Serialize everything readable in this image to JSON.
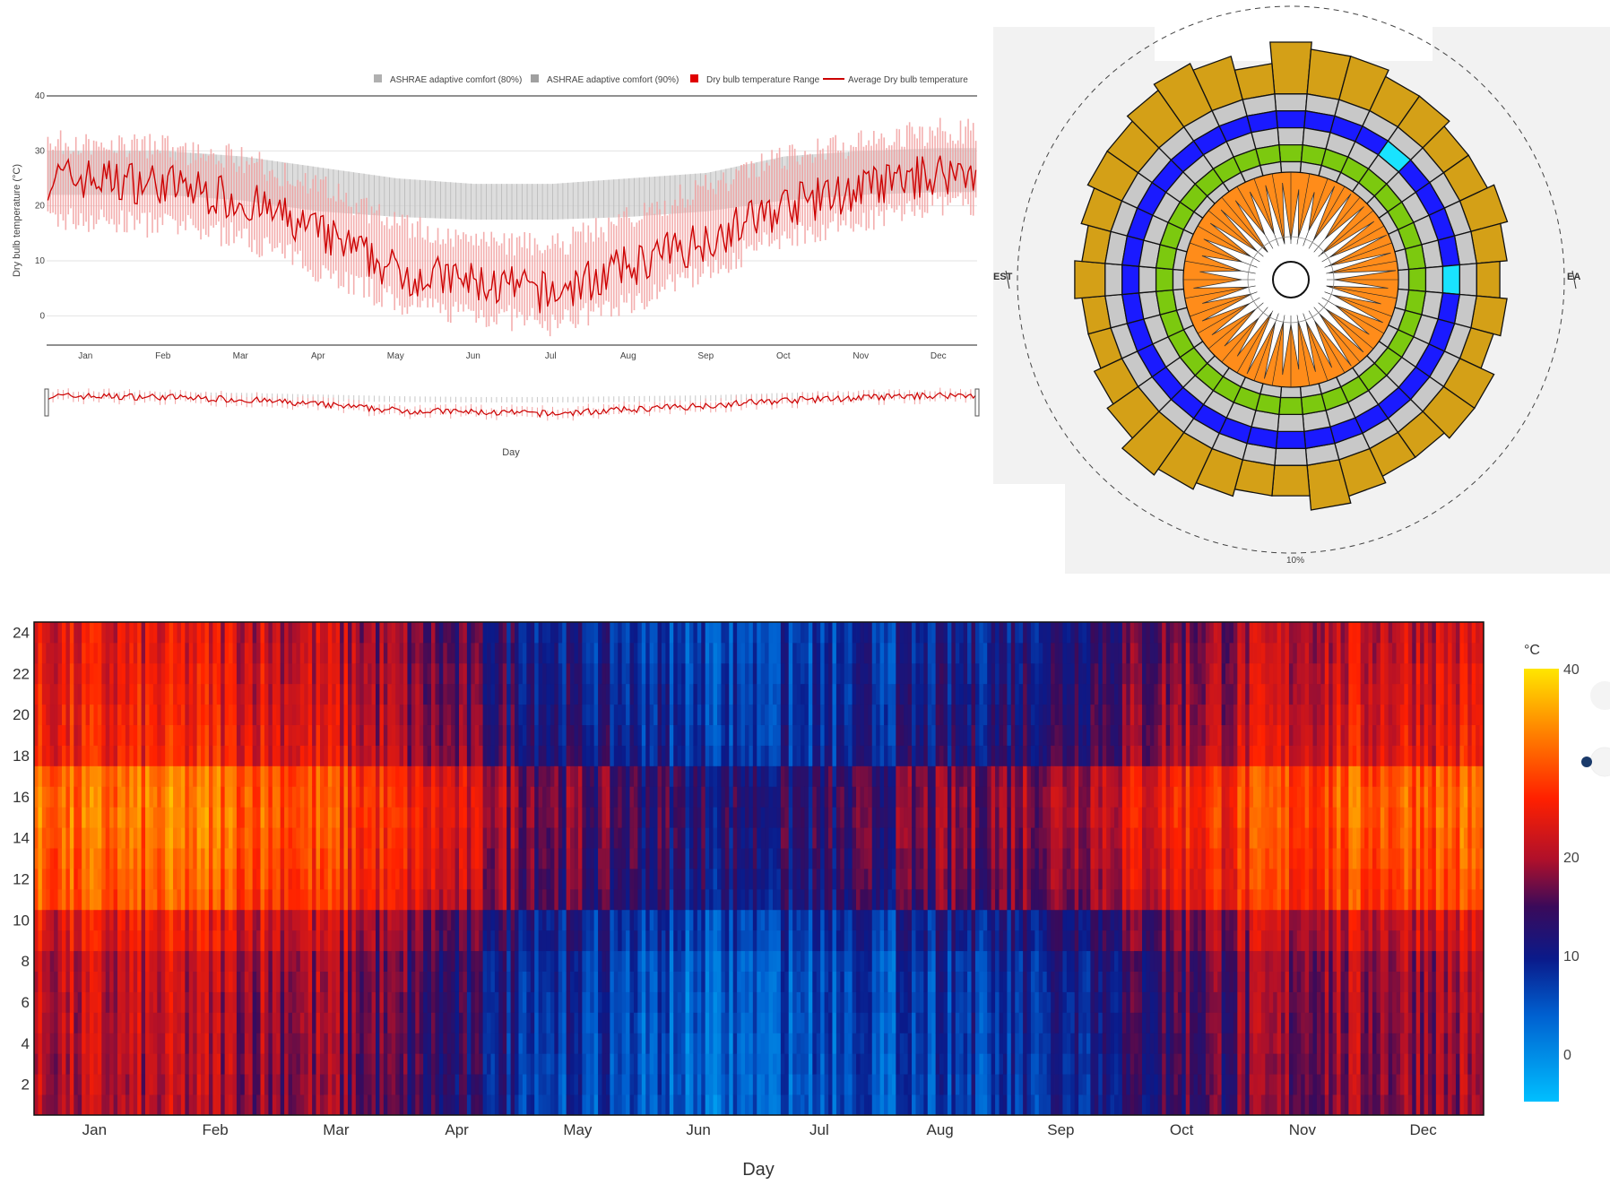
{
  "line_chart": {
    "legend": [
      {
        "label": "ASHRAE adaptive comfort (80%)",
        "color": "#b0b0b0",
        "kind": "box"
      },
      {
        "label": "ASHRAE adaptive comfort (90%)",
        "color": "#a0a0a0",
        "kind": "box"
      },
      {
        "label": "Dry bulb temperature Range",
        "color": "#e00000",
        "kind": "box"
      },
      {
        "label": "Average Dry bulb temperature",
        "color": "#cc0000",
        "kind": "line"
      }
    ],
    "ylabel": "Dry bulb temperature (°C)",
    "xlabel": "Day",
    "yticks": [
      "0",
      "10",
      "20",
      "30",
      "40"
    ],
    "months": [
      "Jan",
      "Feb",
      "Mar",
      "Apr",
      "May",
      "Jun",
      "Jul",
      "Aug",
      "Sep",
      "Oct",
      "Nov",
      "Dec"
    ]
  },
  "wind_rose": {
    "labels": {
      "west": "EST",
      "east": "EA",
      "ring": "10%"
    },
    "colors": {
      "outer": "#d4a017",
      "ring1": "#c8c8c8",
      "ring2": "#1a1aff",
      "ring3": "#c8c8c8",
      "ring4": "#7cc90f",
      "ring5": "#c8c8c8",
      "inner": "#ff8c1a",
      "cyan": "#19e3ff",
      "bg": "#f2f2f2"
    }
  },
  "heatmap": {
    "xlabel": "Day",
    "colorbar_title": "°C",
    "colorbar_ticks": [
      "40",
      "20",
      "10",
      "0"
    ],
    "yticks": [
      "2",
      "4",
      "6",
      "8",
      "10",
      "12",
      "14",
      "16",
      "18",
      "20",
      "22",
      "24"
    ],
    "months": [
      "Jan",
      "Feb",
      "Mar",
      "Apr",
      "May",
      "Jun",
      "Jul",
      "Aug",
      "Sep",
      "Oct",
      "Nov",
      "Dec"
    ]
  },
  "chart_data": [
    {
      "type": "line",
      "ylabel": "Dry bulb temperature (°C)",
      "xlabel": "Day",
      "ylim": [
        -5,
        40
      ],
      "x": [
        "Jan",
        "Feb",
        "Mar",
        "Apr",
        "May",
        "Jun",
        "Jul",
        "Aug",
        "Sep",
        "Oct",
        "Nov",
        "Dec"
      ],
      "series": [
        {
          "name": "Average Dry bulb temperature",
          "values": [
            25,
            24,
            21,
            15,
            8,
            6,
            4,
            9,
            14,
            20,
            23,
            26
          ]
        },
        {
          "name": "Dry bulb temperature Range",
          "values_min": [
            15,
            14,
            12,
            6,
            0,
            -2,
            -4,
            0,
            6,
            12,
            15,
            18
          ],
          "values_max": [
            34,
            33,
            31,
            26,
            19,
            16,
            15,
            20,
            26,
            31,
            34,
            36
          ]
        },
        {
          "name": "ASHRAE adaptive comfort (80%)",
          "values_min": [
            22,
            22,
            21,
            19,
            18,
            17.5,
            17.5,
            18,
            19,
            21,
            22,
            22.5
          ],
          "values_max": [
            30,
            30,
            29,
            27,
            25,
            24,
            24,
            25,
            26,
            29,
            30,
            30.5
          ]
        },
        {
          "name": "ASHRAE adaptive comfort (90%)",
          "values_min": [
            23,
            23,
            22,
            20,
            19,
            18.5,
            18.5,
            19,
            20,
            22,
            23,
            23.5
          ],
          "values_max": [
            29,
            29,
            28,
            26,
            24,
            23,
            23,
            24,
            25,
            28,
            29,
            29.5
          ]
        }
      ]
    },
    {
      "type": "heatmap",
      "xlabel": "Day",
      "x": [
        "Jan",
        "Feb",
        "Mar",
        "Apr",
        "May",
        "Jun",
        "Jul",
        "Aug",
        "Sep",
        "Oct",
        "Nov",
        "Dec"
      ],
      "y": [
        2,
        4,
        6,
        8,
        10,
        12,
        14,
        16,
        18,
        20,
        22,
        24
      ],
      "zlim": [
        -5,
        40
      ],
      "colorbar": "°C",
      "monthly_min_temp": [
        19,
        19,
        17,
        11,
        6,
        3,
        4,
        5,
        9,
        14,
        17,
        18
      ],
      "monthly_max_temp": [
        33,
        34,
        30,
        24,
        18,
        14,
        14,
        19,
        22,
        28,
        31,
        33
      ]
    }
  ]
}
